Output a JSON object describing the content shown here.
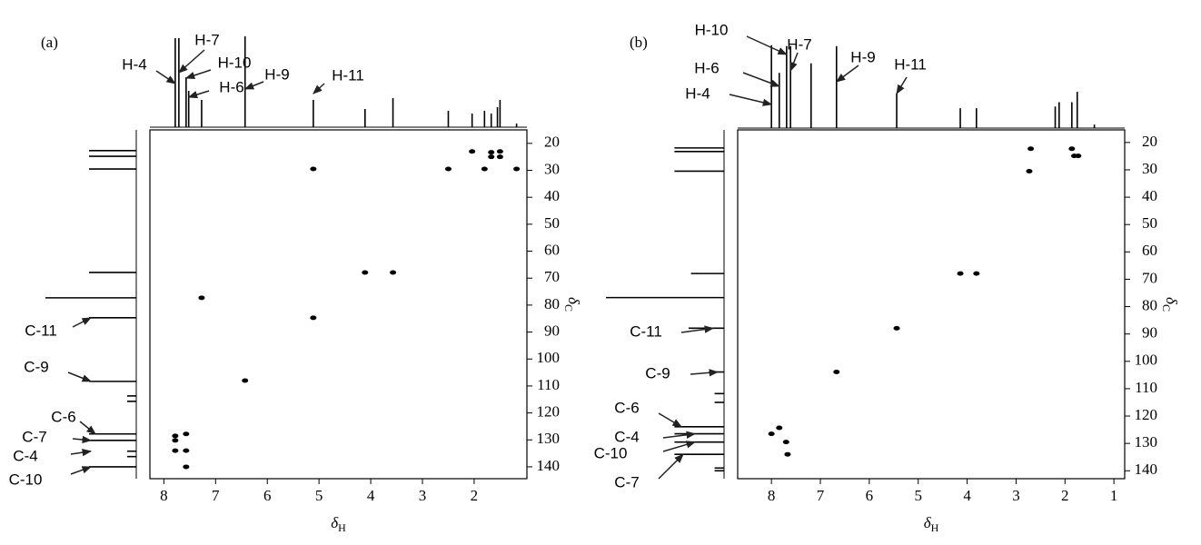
{
  "chart_data": [
    {
      "type": "scatter",
      "label": "(a)",
      "xlabel": {
        "symbol": "δ",
        "subscript": "H"
      },
      "ylabel": {
        "symbol": "δ",
        "subscript": "C"
      },
      "xlim": [
        8.27,
        0.98
      ],
      "xticks": [
        8,
        7,
        6,
        5,
        4,
        3,
        2
      ],
      "ylim": [
        15,
        144.4
      ],
      "yticks": [
        20,
        30,
        40,
        50,
        60,
        70,
        80,
        90,
        100,
        110,
        120,
        130,
        140
      ],
      "color": "#000000",
      "x": [
        7.78,
        7.78,
        7.78,
        7.57,
        7.57,
        7.57,
        7.27,
        6.43,
        5.11,
        4.11,
        3.57,
        5.11,
        2.5,
        1.8,
        2.04,
        1.67,
        1.67,
        1.5,
        1.5,
        1.18
      ],
      "y": [
        128.5,
        130.2,
        134,
        127.8,
        134,
        140,
        77.3,
        108,
        84.7,
        67.9,
        67.9,
        29.5,
        29.5,
        29.5,
        23,
        23.3,
        25,
        23,
        25,
        29.5
      ],
      "top_projection": {
        "x": [
          7.78,
          7.71,
          7.57,
          7.52,
          7.27,
          6.43,
          5.11,
          4.11,
          3.57,
          2.5,
          2.04,
          1.8,
          1.67,
          1.55,
          1.5,
          1.18
        ],
        "heights": [
          0.98,
          0.98,
          0.55,
          0.4,
          0.3,
          1.0,
          0.3,
          0.2,
          0.32,
          0.18,
          0.15,
          0.18,
          0.15,
          0.22,
          0.3,
          0.04
        ]
      },
      "left_projection": {
        "y": [
          22.7,
          24.8,
          29.5,
          67.9,
          77.3,
          84.7,
          108.3,
          113.7,
          115.7,
          127.8,
          130.2,
          134.2,
          136.2,
          140
        ],
        "heights": [
          0.52,
          0.52,
          0.52,
          0.52,
          1.0,
          0.52,
          0.52,
          0.1,
          0.1,
          0.52,
          0.52,
          0.1,
          0.1,
          0.52
        ]
      },
      "h_annotations": [
        {
          "text": "H-4",
          "x": 7.78
        },
        {
          "text": "H-7",
          "x": 7.71
        },
        {
          "text": "H-10",
          "x": 7.57
        },
        {
          "text": "H-6",
          "x": 7.52
        },
        {
          "text": "H-9",
          "x": 6.43
        },
        {
          "text": "H-11",
          "x": 5.11
        }
      ],
      "c_annotations": [
        {
          "text": "C-11",
          "y": 84.7
        },
        {
          "text": "C-9",
          "y": 108.3
        },
        {
          "text": "C-6",
          "y": 127.8
        },
        {
          "text": "C-7",
          "y": 130.2
        },
        {
          "text": "C-4",
          "y": 134.2
        },
        {
          "text": "C-10",
          "y": 140
        }
      ]
    },
    {
      "type": "scatter",
      "label": "(b)",
      "xlabel": {
        "symbol": "δ",
        "subscript": "H"
      },
      "ylabel": {
        "symbol": "δ",
        "subscript": "C"
      },
      "xlim": [
        8.69,
        0.78
      ],
      "xticks": [
        8,
        7,
        6,
        5,
        4,
        3,
        2,
        1
      ],
      "ylim": [
        15.4,
        142.9
      ],
      "yticks": [
        20,
        30,
        40,
        50,
        60,
        70,
        80,
        90,
        100,
        110,
        120,
        130,
        140
      ],
      "color": "#000000",
      "x": [
        8.0,
        7.84,
        7.7,
        7.67,
        6.67,
        5.44,
        4.14,
        3.81,
        2.73,
        2.7,
        1.86,
        1.81,
        1.73
      ],
      "y": [
        126.5,
        124.3,
        129.5,
        134,
        103.9,
        87.9,
        67.9,
        67.9,
        30.5,
        22.3,
        22.3,
        24.9,
        24.9
      ],
      "top_projection": {
        "x": [
          8.0,
          7.84,
          7.69,
          7.61,
          7.19,
          6.67,
          5.44,
          4.14,
          3.81,
          2.2,
          2.12,
          1.86,
          1.75,
          1.4
        ],
        "heights": [
          0.96,
          0.64,
          0.95,
          0.95,
          0.75,
          0.95,
          0.4,
          0.23,
          0.23,
          0.25,
          0.3,
          0.3,
          0.42,
          0.04
        ]
      },
      "left_projection": {
        "y": [
          22,
          23.3,
          30.5,
          67.9,
          76.7,
          87.9,
          103.9,
          111.8,
          115,
          123.9,
          126.5,
          129.5,
          134,
          139,
          140
        ],
        "heights": [
          0.42,
          0.42,
          0.42,
          0.28,
          1.0,
          0.3,
          0.1,
          0.08,
          0.08,
          0.42,
          0.42,
          0.42,
          0.42,
          0.08,
          0.08
        ]
      },
      "h_annotations": [
        {
          "text": "H-10",
          "x": 7.69
        },
        {
          "text": "H-7",
          "x": 7.61
        },
        {
          "text": "H-6",
          "x": 7.84
        },
        {
          "text": "H-4",
          "x": 8.0
        },
        {
          "text": "H-9",
          "x": 6.67
        },
        {
          "text": "H-11",
          "x": 5.44
        }
      ],
      "c_annotations": [
        {
          "text": "C-11",
          "y": 87.9
        },
        {
          "text": "C-9",
          "y": 103.9
        },
        {
          "text": "C-6",
          "y": 123.9
        },
        {
          "text": "C-4",
          "y": 126.5
        },
        {
          "text": "C-10",
          "y": 129.5
        },
        {
          "text": "C-7",
          "y": 134
        }
      ]
    }
  ]
}
